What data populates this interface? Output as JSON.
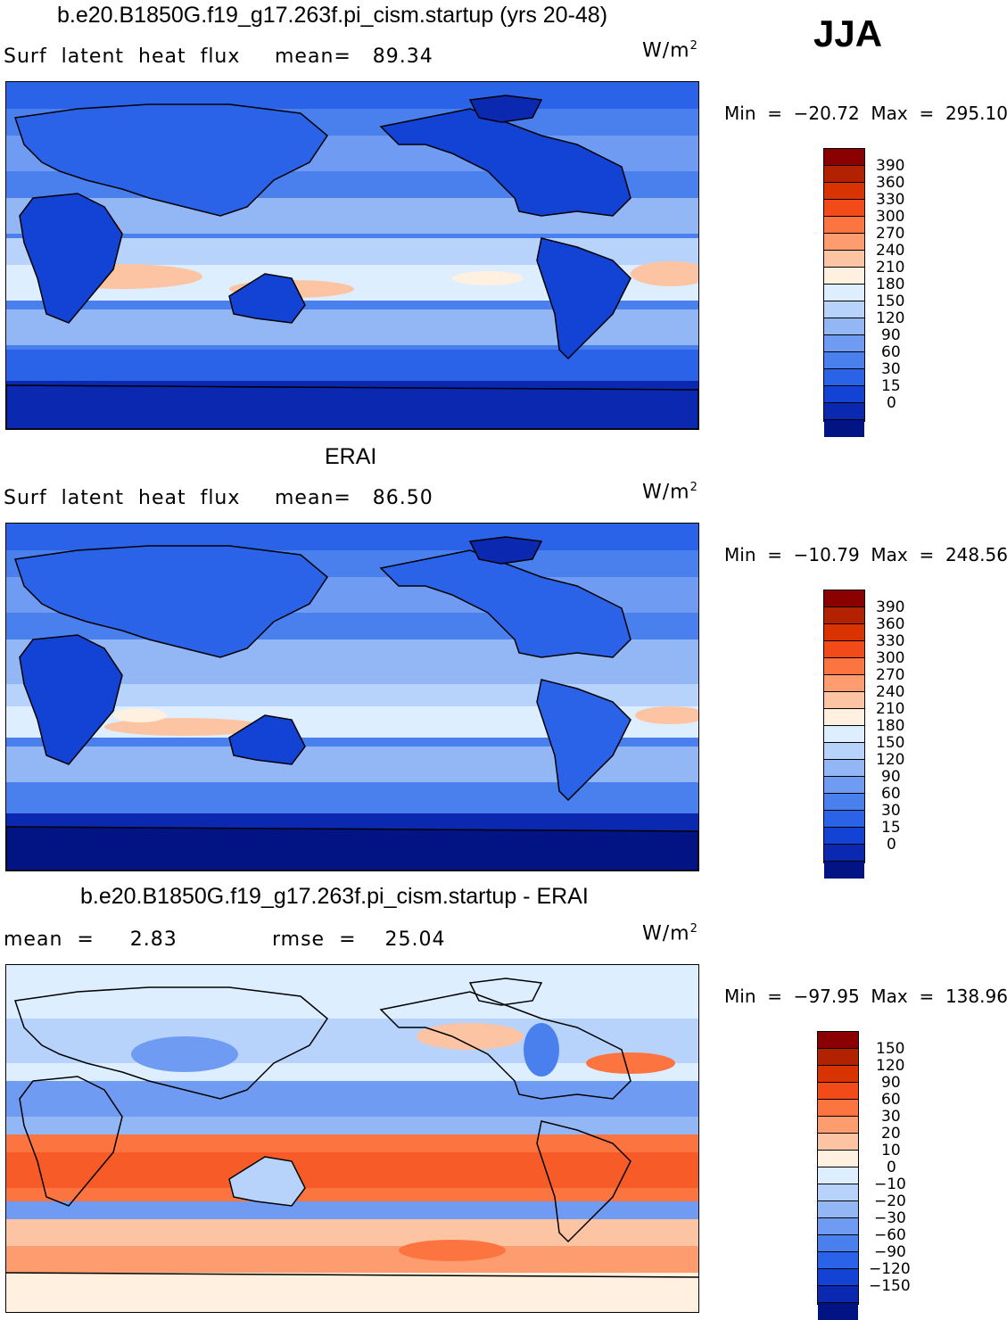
{
  "season": "JJA",
  "panels": [
    {
      "title": "b.e20.B1850G.f19_g17.263f.pi_cism.startup (yrs 20-48)",
      "left": "Surf  latent  heat  flux",
      "stat": "mean=   89.34",
      "units": "W/m",
      "units_sup": "2",
      "minmax": "Min  =  −20.72  Max  =  295.10",
      "colorbar": {
        "colors": [
          "#8b0000",
          "#b22200",
          "#d83300",
          "#f24b19",
          "#fc7440",
          "#fd9c6e",
          "#fdc4a3",
          "#fff0e0",
          "#dceeff",
          "#b7d3fb",
          "#93b7f5",
          "#6f9cf2",
          "#4a80ee",
          "#2a62e8",
          "#1343d4",
          "#0a28b0",
          "#021383"
        ],
        "labels": [
          "390",
          "360",
          "330",
          "300",
          "270",
          "240",
          "210",
          "180",
          "150",
          "120",
          "90",
          "60",
          "30",
          "15",
          "0"
        ]
      }
    },
    {
      "title": "ERAI",
      "left": "Surf  latent  heat  flux",
      "stat": "mean=   86.50",
      "units": "W/m",
      "units_sup": "2",
      "minmax": "Min  =  −10.79  Max  =  248.56",
      "colorbar": {
        "colors": [
          "#8b0000",
          "#b22200",
          "#d83300",
          "#f24b19",
          "#fc7440",
          "#fd9c6e",
          "#fdc4a3",
          "#fff0e0",
          "#dceeff",
          "#b7d3fb",
          "#93b7f5",
          "#6f9cf2",
          "#4a80ee",
          "#2a62e8",
          "#1343d4",
          "#0a28b0",
          "#021383"
        ],
        "labels": [
          "390",
          "360",
          "330",
          "300",
          "270",
          "240",
          "210",
          "180",
          "150",
          "120",
          "90",
          "60",
          "30",
          "15",
          "0"
        ]
      }
    },
    {
      "title": "b.e20.B1850G.f19_g17.263f.pi_cism.startup - ERAI",
      "left": "mean  =     2.83",
      "stat": "rmse  =    25.04",
      "units": "W/m",
      "units_sup": "2",
      "minmax": "Min  =  −97.95  Max  =  138.96",
      "colorbar": {
        "colors": [
          "#8b0000",
          "#b22200",
          "#d83300",
          "#f24b19",
          "#fc7440",
          "#fd9c6e",
          "#fdc4a3",
          "#fff0e0",
          "#dceeff",
          "#b7d3fb",
          "#93b7f5",
          "#6f9cf2",
          "#4a80ee",
          "#2a62e8",
          "#1343d4",
          "#0a28b0",
          "#021383"
        ],
        "labels": [
          "150",
          "120",
          "90",
          "60",
          "30",
          "20",
          "10",
          "0",
          "−10",
          "−20",
          "−30",
          "−60",
          "−90",
          "−120",
          "−150"
        ]
      }
    }
  ]
}
